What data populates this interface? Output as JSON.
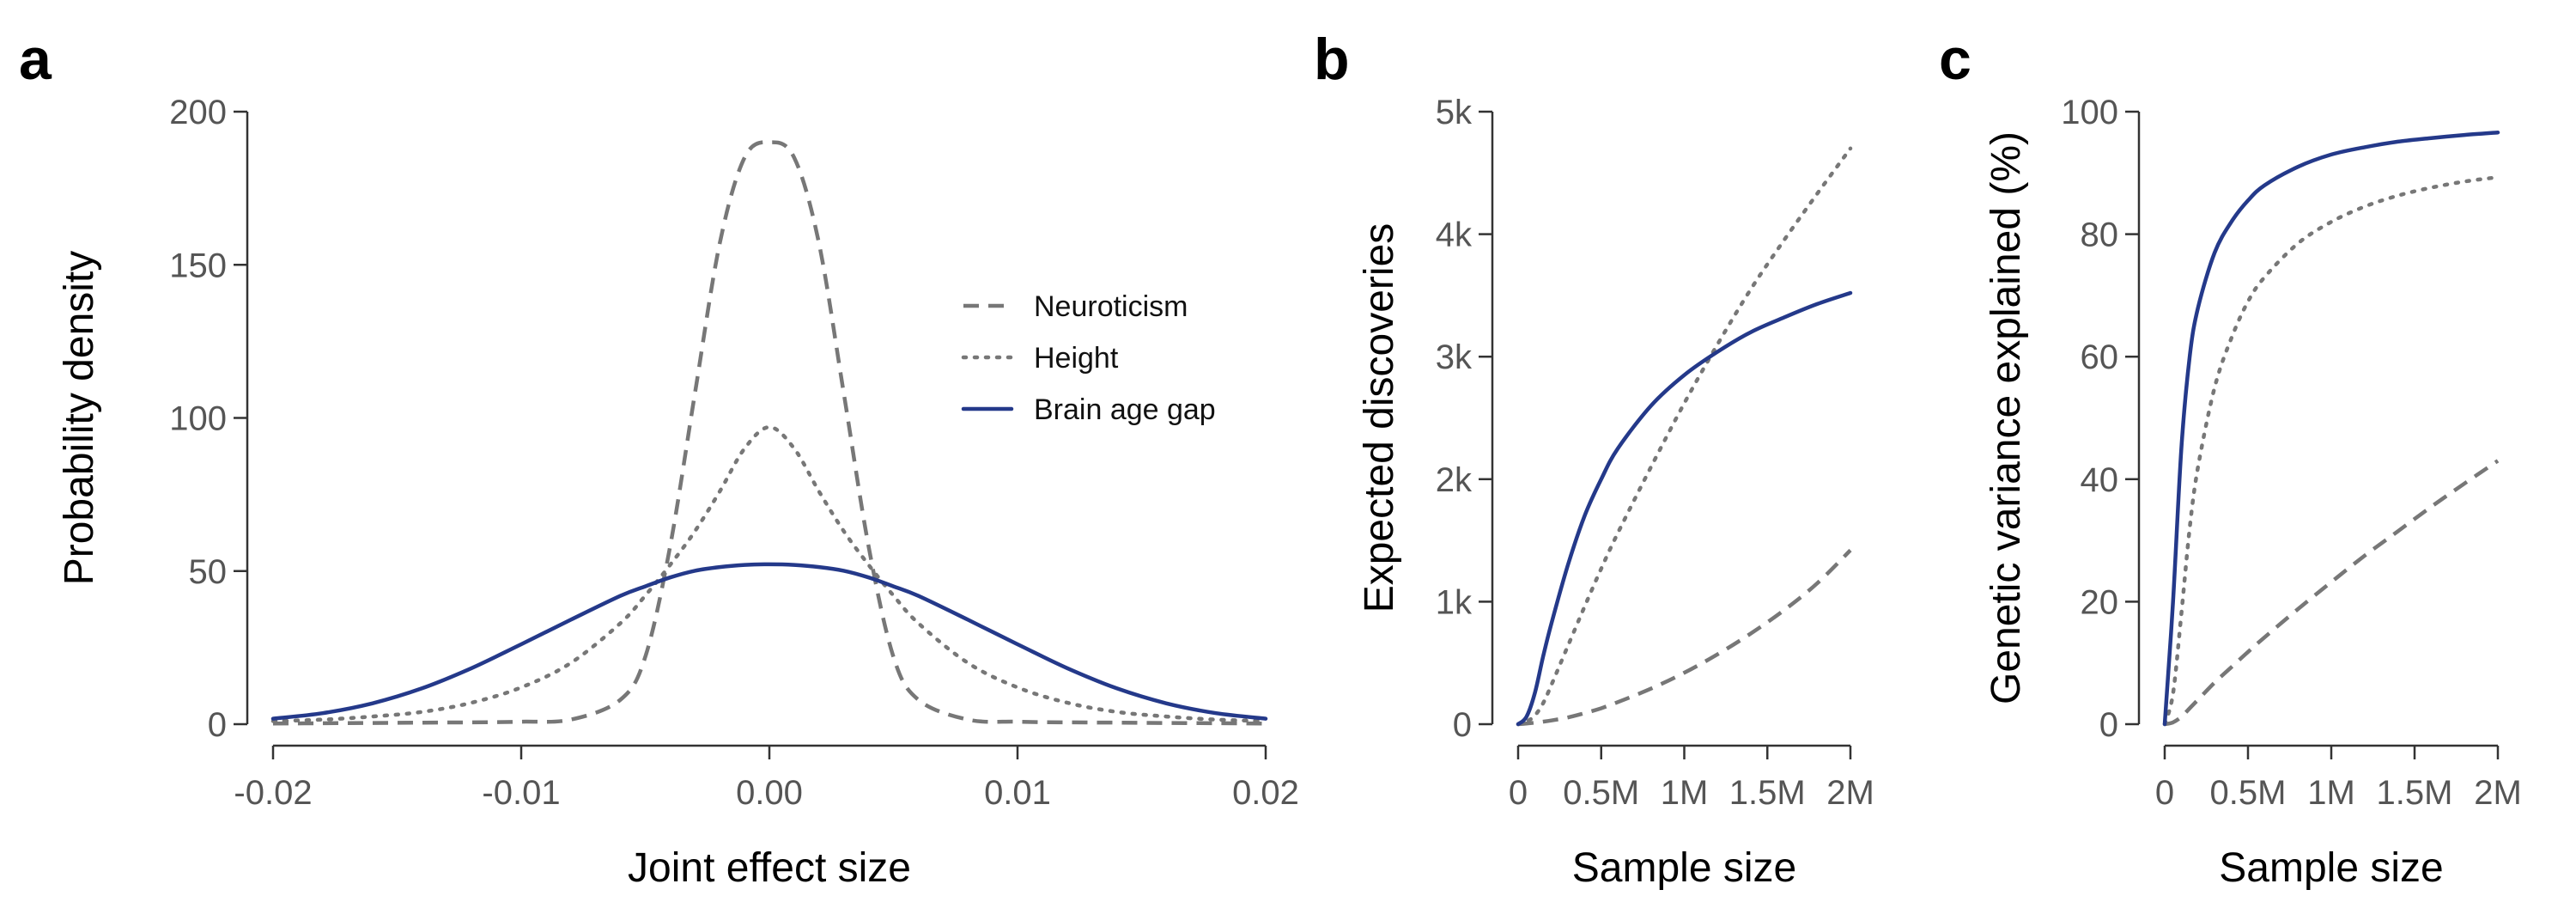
{
  "colors": {
    "neuroticism": "#777777",
    "height": "#777777",
    "brain_age_gap": "#24398a"
  },
  "legend": {
    "placement": "top-right",
    "entries": [
      {
        "label": "Neuroticism",
        "style": "dashed",
        "color": "#777777"
      },
      {
        "label": "Height",
        "style": "dotted",
        "color": "#777777"
      },
      {
        "label": "Brain age gap",
        "style": "solid",
        "color": "#24398a"
      }
    ]
  },
  "chart_data": [
    {
      "panel": "a",
      "type": "line",
      "xlabel": "Joint effect size",
      "ylabel": "Probability density",
      "xlim": [
        -0.02,
        0.02
      ],
      "ylim": [
        0,
        200
      ],
      "xticks": [
        -0.02,
        -0.01,
        0.0,
        0.01,
        0.02
      ],
      "xtick_labels": [
        "-0.02",
        "-0.01",
        "0.00",
        "0.01",
        "0.02"
      ],
      "yticks": [
        0,
        50,
        100,
        150,
        200
      ],
      "ytick_labels": [
        "0",
        "50",
        "100",
        "150",
        "200"
      ],
      "grid": false,
      "x": [
        -0.02,
        -0.018,
        -0.016,
        -0.014,
        -0.012,
        -0.01,
        -0.008,
        -0.006,
        -0.005,
        -0.004,
        -0.003,
        -0.002,
        -0.001,
        0.0,
        0.001,
        0.002,
        0.003,
        0.004,
        0.005,
        0.006,
        0.008,
        0.01,
        0.012,
        0.014,
        0.016,
        0.018,
        0.02
      ],
      "series": [
        {
          "name": "Neuroticism",
          "style": "dashed",
          "values": [
            0.2,
            0.3,
            0.4,
            0.5,
            0.6,
            0.8,
            1.5,
            8,
            22,
            58,
            108,
            157,
            185,
            190,
            185,
            157,
            108,
            58,
            22,
            8,
            1.5,
            0.8,
            0.6,
            0.5,
            0.4,
            0.3,
            0.2
          ]
        },
        {
          "name": "Height",
          "style": "dotted",
          "values": [
            1.0,
            1.5,
            2.5,
            4,
            7,
            12,
            20,
            33,
            42,
            52,
            63,
            76,
            90,
            97,
            90,
            76,
            63,
            52,
            42,
            33,
            20,
            12,
            7,
            4,
            2.5,
            1.5,
            1.0
          ]
        },
        {
          "name": "Brain age gap",
          "style": "solid",
          "values": [
            1.8,
            3.6,
            6.8,
            11.7,
            18.3,
            26.1,
            34.1,
            41.9,
            45.0,
            47.9,
            50.1,
            51.3,
            52.0,
            52.2,
            52.0,
            51.3,
            50.1,
            47.9,
            45.0,
            41.9,
            34.1,
            26.1,
            18.3,
            11.7,
            6.8,
            3.6,
            1.8
          ]
        }
      ]
    },
    {
      "panel": "b",
      "type": "line",
      "xlabel": "Sample size",
      "ylabel": "Expected discoveries",
      "xlim": [
        0,
        2000000
      ],
      "ylim": [
        0,
        5000
      ],
      "xticks": [
        0,
        500000,
        1000000,
        1500000,
        2000000
      ],
      "xtick_labels": [
        "0",
        "0.5M",
        "1M",
        "1.5M",
        "2M"
      ],
      "yticks": [
        0,
        1000,
        2000,
        3000,
        4000,
        5000
      ],
      "ytick_labels": [
        "0",
        "1k",
        "2k",
        "3k",
        "4k",
        "5k"
      ],
      "grid": false,
      "x": [
        0,
        50000,
        100000,
        150000,
        200000,
        300000,
        400000,
        500000,
        600000,
        800000,
        1000000,
        1200000,
        1400000,
        1600000,
        1800000,
        2000000
      ],
      "series": [
        {
          "name": "Neuroticism",
          "style": "dashed",
          "values": [
            0,
            5,
            12,
            20,
            30,
            55,
            90,
            130,
            180,
            290,
            420,
            570,
            740,
            930,
            1150,
            1420
          ]
        },
        {
          "name": "Height",
          "style": "dotted",
          "values": [
            0,
            20,
            70,
            170,
            320,
            640,
            960,
            1270,
            1560,
            2100,
            2620,
            3100,
            3550,
            3950,
            4330,
            4700
          ]
        },
        {
          "name": "Brain age gap",
          "style": "solid",
          "values": [
            0,
            60,
            250,
            550,
            820,
            1300,
            1700,
            2000,
            2250,
            2600,
            2850,
            3040,
            3200,
            3320,
            3430,
            3520
          ]
        }
      ]
    },
    {
      "panel": "c",
      "type": "line",
      "xlabel": "Sample size",
      "ylabel": "Genetic variance explained (%)",
      "xlim": [
        0,
        2000000
      ],
      "ylim": [
        0,
        100
      ],
      "xticks": [
        0,
        500000,
        1000000,
        1500000,
        2000000
      ],
      "xtick_labels": [
        "0",
        "0.5M",
        "1M",
        "1.5M",
        "2M"
      ],
      "yticks": [
        0,
        20,
        40,
        60,
        80,
        100
      ],
      "ytick_labels": [
        "0",
        "20",
        "40",
        "60",
        "80",
        "100"
      ],
      "grid": false,
      "x": [
        0,
        50000,
        100000,
        150000,
        200000,
        300000,
        400000,
        500000,
        600000,
        800000,
        1000000,
        1200000,
        1400000,
        1600000,
        1800000,
        2000000
      ],
      "series": [
        {
          "name": "Neuroticism",
          "style": "dashed",
          "values": [
            0,
            0.3,
            1.2,
            2.6,
            4.0,
            6.8,
            9.3,
            11.8,
            14.2,
            18.8,
            23.2,
            27.5,
            31.5,
            35.5,
            39.3,
            43.0
          ]
        },
        {
          "name": "Height",
          "style": "dotted",
          "values": [
            0,
            5,
            18,
            32,
            42,
            55,
            63,
            69,
            73,
            78.5,
            82,
            84.5,
            86.3,
            87.6,
            88.6,
            89.3
          ]
        },
        {
          "name": "Brain age gap",
          "style": "solid",
          "values": [
            0,
            20,
            45,
            60,
            68,
            77,
            82,
            85.5,
            88,
            91,
            93,
            94.2,
            95.1,
            95.7,
            96.2,
            96.6
          ]
        }
      ]
    }
  ]
}
